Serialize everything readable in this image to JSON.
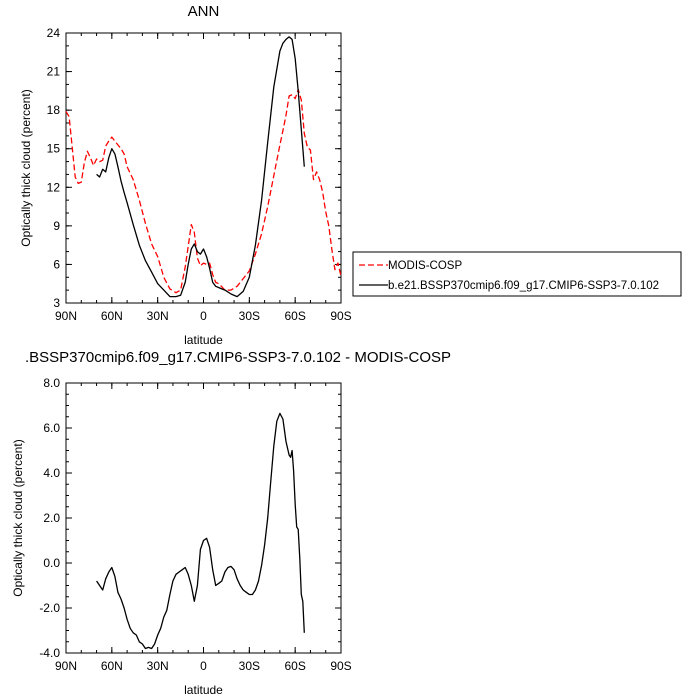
{
  "chart_data": [
    {
      "type": "line",
      "title": "ANN",
      "xlabel": "latitude",
      "ylabel": "Optically thick cloud (percent)",
      "xlim": [
        90,
        -90
      ],
      "ylim": [
        3,
        24
      ],
      "xticks": [
        90,
        60,
        30,
        0,
        -30,
        -60,
        -90
      ],
      "xtick_labels": [
        "90N",
        "60N",
        "30N",
        "0",
        "30S",
        "60S",
        "90S"
      ],
      "yticks": [
        3,
        6,
        9,
        12,
        15,
        18,
        21,
        24
      ],
      "ytick_labels": [
        "3",
        "6",
        "9",
        "12",
        "15",
        "18",
        "21",
        "24"
      ],
      "legend_position": "right",
      "series": [
        {
          "name": "MODIS-COSP",
          "color": "#ff0000",
          "style": "dashed",
          "x": [
            90,
            88,
            86,
            84,
            82,
            80,
            78,
            76,
            74,
            72,
            70,
            68,
            66,
            64,
            62,
            60,
            58,
            56,
            54,
            52,
            50,
            46,
            42,
            38,
            34,
            30,
            26,
            22,
            18,
            15,
            12,
            10,
            8,
            6,
            4,
            2,
            0,
            -2,
            -4,
            -6,
            -8,
            -10,
            -14,
            -18,
            -22,
            -26,
            -30,
            -34,
            -38,
            -42,
            -46,
            -50,
            -52,
            -54,
            -56,
            -58,
            -60,
            -62,
            -64,
            -66,
            -68,
            -70,
            -72,
            -74,
            -76,
            -78,
            -80,
            -82,
            -84,
            -86,
            -88,
            -90
          ],
          "y": [
            17.9,
            17.5,
            15.2,
            12.8,
            12.3,
            12.4,
            13.9,
            14.8,
            14.3,
            13.7,
            14.2,
            14.0,
            14.1,
            15.2,
            15.6,
            15.9,
            15.6,
            15.3,
            15.0,
            14.6,
            13.6,
            12.6,
            11.0,
            9.2,
            7.6,
            6.6,
            5.0,
            4.1,
            3.8,
            4.0,
            5.8,
            7.4,
            9.1,
            8.5,
            6.5,
            5.9,
            6.1,
            6.0,
            6.1,
            5.2,
            4.6,
            4.5,
            4.0,
            4.0,
            4.3,
            4.9,
            5.5,
            6.8,
            8.4,
            10.5,
            12.9,
            15.3,
            16.4,
            17.6,
            19.1,
            19.2,
            18.9,
            19.6,
            18.8,
            16.2,
            15.1,
            14.9,
            12.6,
            13.2,
            12.6,
            11.6,
            10.1,
            9.0,
            7.2,
            5.6,
            6.1,
            5.1
          ]
        },
        {
          "name": "b.e21.BSSP370cmip6.f09_g17.CMIP6-SSP3-7.0.102",
          "color": "#000000",
          "style": "solid",
          "x": [
            70,
            68,
            66,
            64,
            62,
            60,
            58,
            56,
            54,
            52,
            50,
            46,
            42,
            38,
            34,
            30,
            26,
            22,
            18,
            15,
            12,
            10,
            8,
            6,
            4,
            2,
            0,
            -2,
            -4,
            -6,
            -8,
            -10,
            -14,
            -18,
            -22,
            -26,
            -30,
            -34,
            -38,
            -42,
            -46,
            -50,
            -52,
            -54,
            -56,
            -58,
            -60,
            -62,
            -64,
            -66
          ],
          "y": [
            13.0,
            12.8,
            13.4,
            13.2,
            14.3,
            15.0,
            14.6,
            13.6,
            12.5,
            11.6,
            10.8,
            9.1,
            7.5,
            6.3,
            5.4,
            4.5,
            4.0,
            3.5,
            3.5,
            3.6,
            4.6,
            6.0,
            7.2,
            7.6,
            7.0,
            6.8,
            7.2,
            6.6,
            5.7,
            4.6,
            4.3,
            4.2,
            4.0,
            3.7,
            3.5,
            3.9,
            5.0,
            7.5,
            11.0,
            15.5,
            19.8,
            22.6,
            23.2,
            23.5,
            23.7,
            23.5,
            22.0,
            19.5,
            16.5,
            13.6
          ]
        }
      ]
    },
    {
      "type": "line",
      "title": ".BSSP370cmip6.f09_g17.CMIP6-SSP3-7.0.102 - MODIS-COSP",
      "xlabel": "latitude",
      "ylabel": "Optically thick cloud (percent)",
      "xlim": [
        90,
        -90
      ],
      "ylim": [
        -4,
        8
      ],
      "xticks": [
        90,
        60,
        30,
        0,
        -30,
        -60,
        -90
      ],
      "xtick_labels": [
        "90N",
        "60N",
        "30N",
        "0",
        "30S",
        "60S",
        "90S"
      ],
      "yticks": [
        -4,
        -2,
        0,
        2,
        4,
        6,
        8
      ],
      "ytick_labels": [
        "-4.0",
        "-2.0",
        "0.0",
        "2.0",
        "4.0",
        "6.0",
        "8.0"
      ],
      "series": [
        {
          "color": "#000000",
          "style": "solid",
          "x": [
            70,
            68,
            66,
            64,
            62,
            60,
            58,
            56,
            54,
            52,
            50,
            48,
            46,
            44,
            42,
            40,
            38,
            36,
            34,
            32,
            30,
            28,
            26,
            24,
            22,
            20,
            18,
            16,
            14,
            12,
            10,
            8,
            6,
            4,
            2,
            0,
            -2,
            -4,
            -6,
            -8,
            -10,
            -12,
            -14,
            -16,
            -18,
            -20,
            -22,
            -24,
            -26,
            -28,
            -30,
            -32,
            -34,
            -36,
            -38,
            -40,
            -42,
            -44,
            -46,
            -48,
            -50,
            -52,
            -54,
            -56,
            -57,
            -58,
            -59,
            -60,
            -61,
            -62,
            -63,
            -64,
            -65,
            -66
          ],
          "y": [
            -0.8,
            -1.0,
            -1.2,
            -0.7,
            -0.4,
            -0.2,
            -0.6,
            -1.3,
            -1.6,
            -2.0,
            -2.5,
            -2.9,
            -3.1,
            -3.2,
            -3.5,
            -3.6,
            -3.8,
            -3.75,
            -3.8,
            -3.6,
            -3.2,
            -2.9,
            -2.4,
            -2.1,
            -1.4,
            -0.8,
            -0.5,
            -0.4,
            -0.3,
            -0.2,
            -0.5,
            -1.0,
            -1.7,
            -1.0,
            0.6,
            1.0,
            1.1,
            0.7,
            -0.3,
            -1.0,
            -0.9,
            -0.8,
            -0.4,
            -0.2,
            -0.15,
            -0.3,
            -0.7,
            -1.0,
            -1.2,
            -1.3,
            -1.4,
            -1.4,
            -1.2,
            -0.8,
            -0.1,
            0.8,
            2.0,
            3.6,
            5.2,
            6.3,
            6.65,
            6.4,
            5.4,
            4.8,
            4.7,
            5.0,
            4.1,
            2.6,
            1.6,
            1.5,
            0.2,
            -1.4,
            -1.7,
            -3.1
          ]
        }
      ]
    }
  ]
}
